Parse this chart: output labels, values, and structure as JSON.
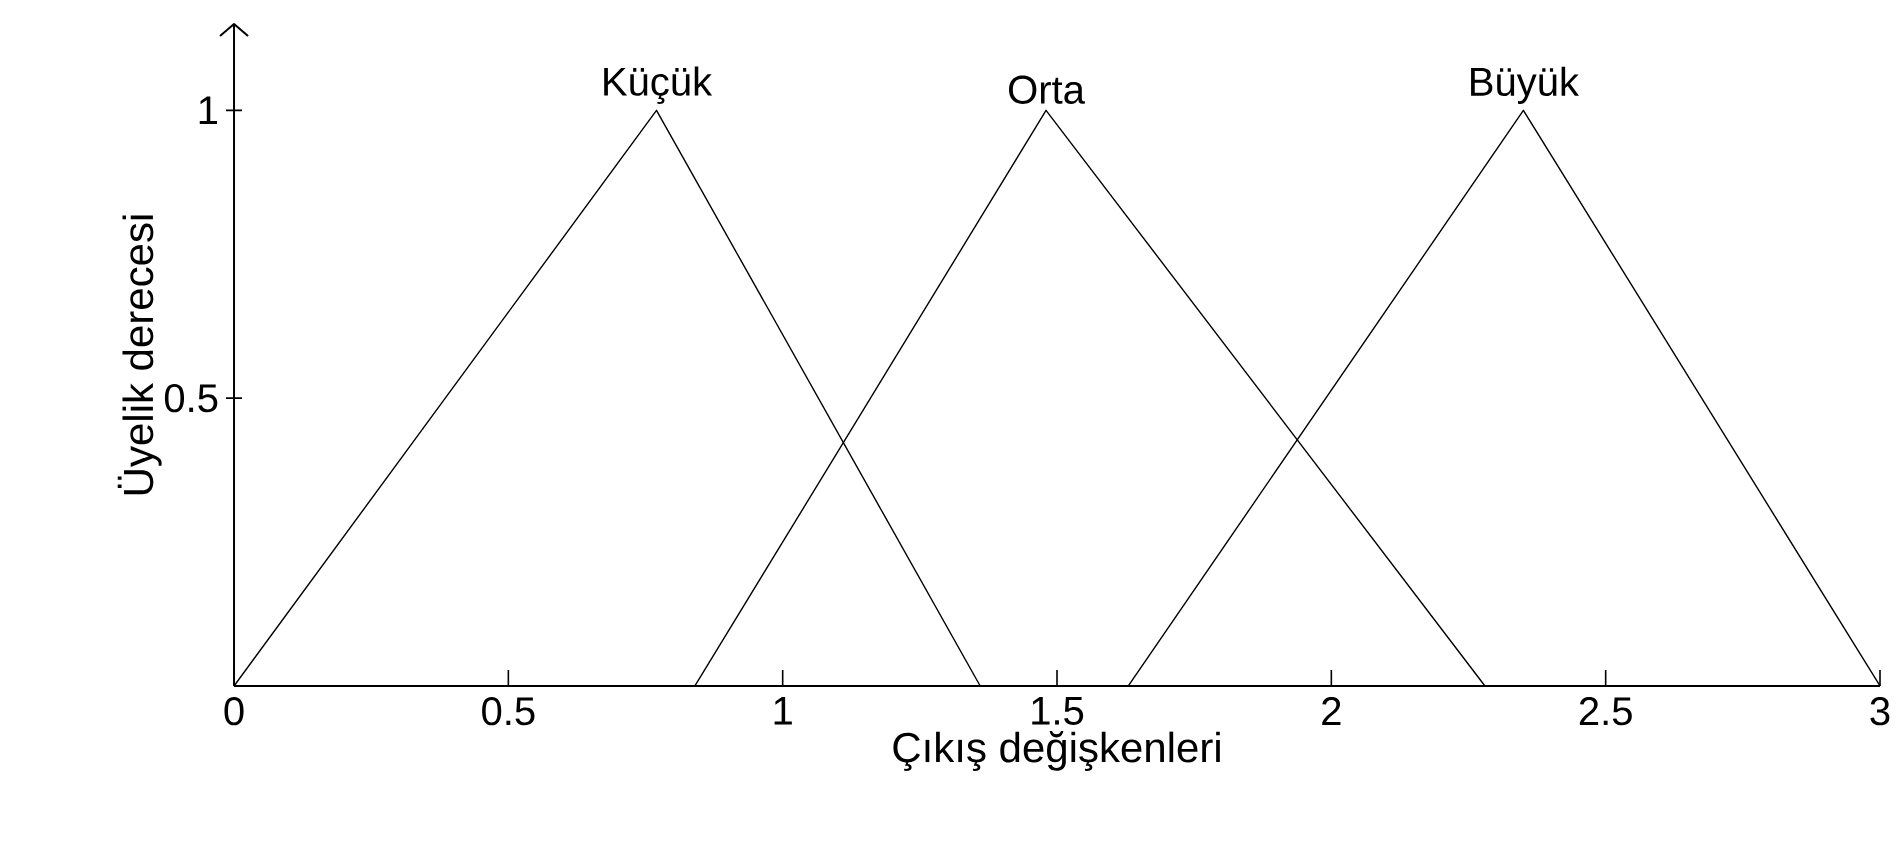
{
  "chart_data": {
    "type": "line",
    "xlabel": "Çıkış değişkenleri",
    "ylabel": "Üyelik derecesi",
    "xlim": [
      0,
      3
    ],
    "ylim": [
      0,
      1.15
    ],
    "xticks": [
      0,
      0.5,
      1,
      1.5,
      2,
      2.5,
      3
    ],
    "yticks": [
      0.5,
      1
    ],
    "series": [
      {
        "name": "Küçük",
        "color": "#000000",
        "x": [
          0,
          0.77,
          1.36
        ],
        "values": [
          0,
          1,
          0
        ]
      },
      {
        "name": "Orta",
        "color": "#000000",
        "x": [
          0.84,
          1.48,
          2.28
        ],
        "values": [
          0,
          1,
          0
        ]
      },
      {
        "name": "Büyük",
        "color": "#000000",
        "x": [
          1.63,
          2.35,
          3
        ],
        "values": [
          0,
          1,
          0
        ]
      }
    ]
  }
}
